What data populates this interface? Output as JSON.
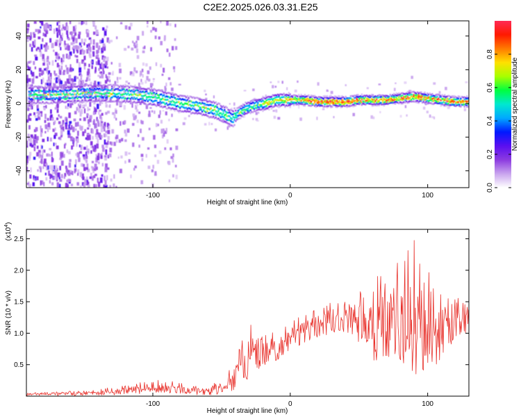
{
  "chart_data": [
    {
      "type": "heatmap",
      "title": "C2E2.2025.026.03.31.E25",
      "xlabel": "Height of straight line (km)",
      "ylabel": "Frequency (Hz)",
      "xlim": [
        -192,
        130
      ],
      "ylim": [
        -50,
        49
      ],
      "x_ticks": [
        -100,
        0,
        100
      ],
      "y_ticks": [
        -40,
        -20,
        0,
        20,
        40
      ],
      "x_tick_labels": [
        "-100",
        "0",
        "100"
      ],
      "y_tick_labels": [
        "-40",
        "-20",
        "0",
        "20",
        "40"
      ],
      "ridge": {
        "x": [
          -190,
          -170,
          -150,
          -130,
          -110,
          -95,
          -80,
          -65,
          -55,
          -47,
          -42,
          -38,
          -32,
          -25,
          -18,
          -10,
          0,
          10,
          20,
          30,
          40,
          50,
          60,
          70,
          80,
          90,
          100,
          110,
          120,
          130
        ],
        "frequency": [
          5,
          5,
          6,
          6,
          5,
          3,
          0,
          -2,
          -4,
          -7,
          -9,
          -6,
          -3,
          -1,
          0,
          2,
          2,
          2,
          1,
          1,
          1,
          2,
          2,
          2,
          3,
          4,
          3,
          2,
          1,
          1
        ]
      },
      "colorbar": {
        "label": "Normalized spectral amplitude",
        "range": [
          0,
          1
        ],
        "ticks": [
          0,
          0.2,
          0.4,
          0.6,
          0.8
        ],
        "tick_labels": [
          "0.0",
          "0.2",
          "0.4",
          "0.6",
          "0.8"
        ],
        "colors": [
          "#ffffff",
          "#c9a4ee",
          "#8c3be0",
          "#5a0ff0",
          "#0018ff",
          "#00a8ff",
          "#00e8d0",
          "#00ff40",
          "#a8ff00",
          "#ffe000",
          "#ff7a00",
          "#ff1a00",
          "#ff2a55"
        ]
      },
      "grid": false
    },
    {
      "type": "line",
      "xlabel": "Height of straight line (km)",
      "ylabel": "SNR (10 * v/v)",
      "y_multiplier": "(x10",
      "y_multiplier_exp": "4",
      "y_multiplier_close": ")",
      "xlim": [
        -192,
        130
      ],
      "ylim": [
        0,
        2.65
      ],
      "x_ticks": [
        -100,
        0,
        100
      ],
      "x_tick_labels": [
        "-100",
        "0",
        "100"
      ],
      "y_ticks": [
        0.5,
        1.0,
        1.5,
        2.0,
        2.5
      ],
      "y_tick_labels": [
        "0.5",
        "1.0",
        "1.5",
        "2.0",
        "2.5"
      ],
      "series": [
        {
          "color": "#e8302a",
          "envelope_x": [
            -192,
            -170,
            -150,
            -130,
            -115,
            -100,
            -85,
            -70,
            -60,
            -52,
            -45,
            -40,
            -35,
            -30,
            -27,
            -25,
            -20,
            -15,
            -10,
            -5,
            0,
            10,
            20,
            30,
            40,
            50,
            55,
            60,
            70,
            80,
            90,
            100,
            110,
            120,
            130
          ],
          "baseline": [
            0.03,
            0.03,
            0.04,
            0.06,
            0.09,
            0.11,
            0.1,
            0.06,
            0.06,
            0.1,
            0.16,
            0.25,
            0.36,
            0.45,
            0.5,
            0.55,
            0.62,
            0.66,
            0.72,
            0.82,
            0.9,
            1.0,
            1.08,
            1.15,
            1.2,
            1.18,
            1.05,
            0.85,
            0.75,
            0.78,
            0.82,
            0.9,
            1.0,
            1.08,
            1.15
          ],
          "peak": [
            0.06,
            0.07,
            0.09,
            0.14,
            0.2,
            0.26,
            0.24,
            0.16,
            0.16,
            0.26,
            0.42,
            0.62,
            0.92,
            1.25,
            1.05,
            1.1,
            0.95,
            1.0,
            1.05,
            1.12,
            1.18,
            1.3,
            1.4,
            1.5,
            1.5,
            1.65,
            1.95,
            2.05,
            2.35,
            2.1,
            2.55,
            2.0,
            1.75,
            1.6,
            1.45
          ],
          "trough": [
            0.0,
            0.0,
            0.01,
            0.02,
            0.03,
            0.04,
            0.03,
            0.02,
            0.01,
            0.03,
            0.06,
            0.1,
            0.16,
            0.22,
            0.3,
            0.4,
            0.45,
            0.5,
            0.55,
            0.65,
            0.72,
            0.82,
            0.9,
            0.98,
            1.0,
            0.85,
            0.7,
            0.55,
            0.5,
            0.4,
            0.25,
            0.35,
            0.6,
            0.9,
            1.0
          ]
        }
      ],
      "grid": false
    }
  ]
}
